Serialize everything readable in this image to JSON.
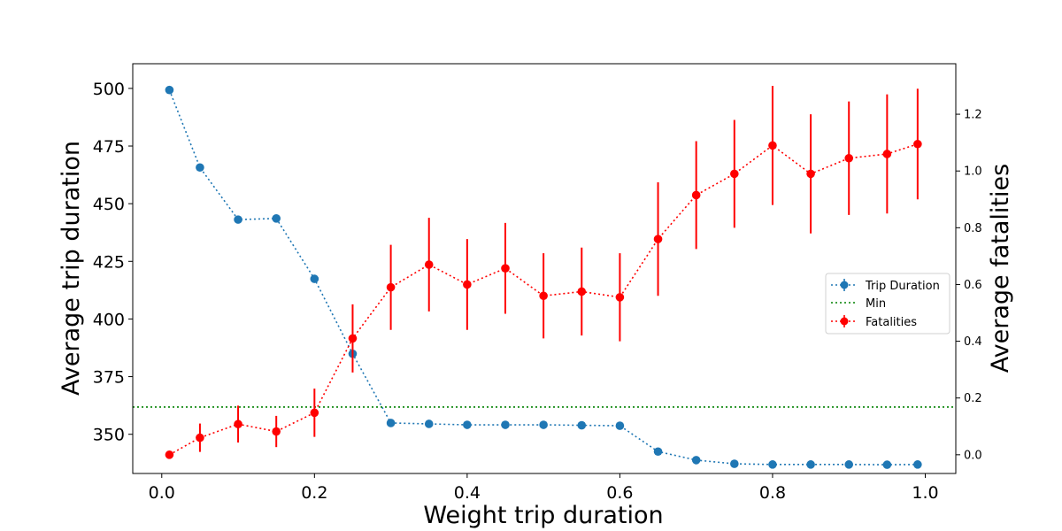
{
  "chart_data": {
    "type": "line",
    "xlabel": "Weight trip duration",
    "ylabel": "Average trip duration",
    "y2label": "Average fatalities",
    "xlim": [
      -0.038,
      1.04
    ],
    "ylim": [
      333,
      510.7
    ],
    "y2lim": [
      -0.066,
      1.378
    ],
    "x_ticks": [
      0.0,
      0.2,
      0.4,
      0.6,
      0.8,
      1.0
    ],
    "x_tick_labels": [
      "0.0",
      "0.2",
      "0.4",
      "0.6",
      "0.8",
      "1.0"
    ],
    "y_ticks": [
      350,
      375,
      400,
      425,
      450,
      475,
      500
    ],
    "y_tick_labels": [
      "350",
      "375",
      "400",
      "425",
      "450",
      "475",
      "500"
    ],
    "y2_ticks": [
      0.0,
      0.2,
      0.4,
      0.6,
      0.8,
      1.0,
      1.2
    ],
    "y2_tick_labels": [
      "0.0",
      "0.2",
      "0.4",
      "0.6",
      "0.8",
      "1.0",
      "1.2"
    ],
    "x": [
      0.01,
      0.05,
      0.1,
      0.15,
      0.2,
      0.25,
      0.3,
      0.35,
      0.4,
      0.45,
      0.5,
      0.55,
      0.6,
      0.65,
      0.7,
      0.75,
      0.8,
      0.85,
      0.9,
      0.95,
      0.99
    ],
    "series": [
      {
        "name": "Trip Duration",
        "axis": "left",
        "color": "#1f77b4",
        "style": "dotted",
        "values": [
          499.3,
          465.7,
          443.1,
          443.6,
          417.4,
          384.9,
          354.9,
          354.5,
          354.1,
          354.1,
          354.1,
          353.9,
          353.7,
          342.5,
          338.8,
          337.2,
          336.9,
          336.9,
          336.9,
          336.8,
          336.9
        ],
        "errors": [
          1.5,
          0.8,
          0.7,
          0.7,
          0.7,
          0.7,
          0.5,
          0.5,
          0.5,
          0.5,
          0.5,
          0.5,
          0.5,
          0.5,
          0.5,
          0.4,
          0.4,
          0.4,
          0.4,
          0.4,
          0.4
        ]
      },
      {
        "name": "Min",
        "axis": "left",
        "color": "#008000",
        "style": "dotted",
        "hline": 361.8
      },
      {
        "name": "Fatalities",
        "axis": "right",
        "color": "#ff0000",
        "style": "dotted",
        "values": [
          0.0,
          0.06,
          0.108,
          0.082,
          0.148,
          0.41,
          0.59,
          0.67,
          0.6,
          0.657,
          0.56,
          0.575,
          0.555,
          0.76,
          0.915,
          0.99,
          1.09,
          0.99,
          1.045,
          1.06,
          1.095
        ],
        "errors": [
          0.0,
          0.05,
          0.065,
          0.055,
          0.085,
          0.12,
          0.15,
          0.165,
          0.16,
          0.16,
          0.15,
          0.155,
          0.155,
          0.2,
          0.19,
          0.19,
          0.21,
          0.21,
          0.2,
          0.21,
          0.195
        ]
      }
    ],
    "legend": {
      "position": "center-right",
      "entries": [
        "Trip Duration",
        "Min",
        "Fatalities"
      ]
    },
    "grid": false
  }
}
